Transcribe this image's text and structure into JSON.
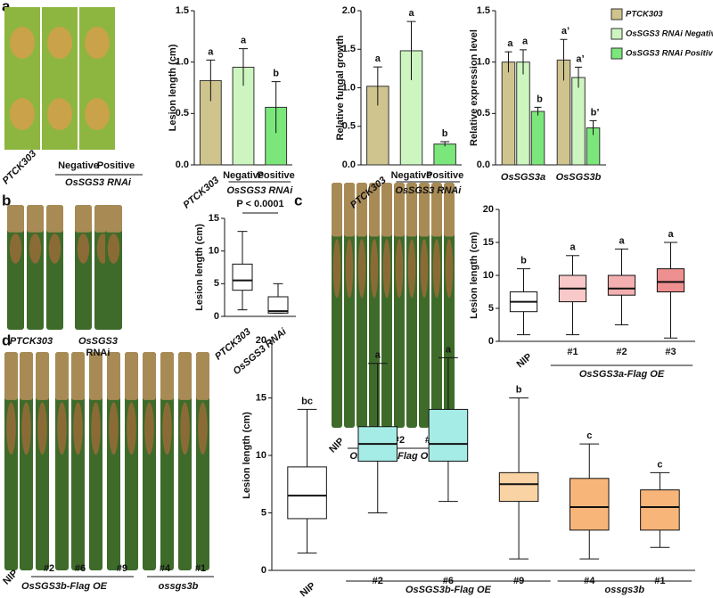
{
  "panel_letters": [
    "a",
    "b",
    "c",
    "d"
  ],
  "photos": [
    {
      "labels": [
        "PTCK303",
        "Negative",
        "Positive"
      ],
      "group_label": "OsSGS3 RNAi"
    },
    {
      "labels": [
        "PTCK303",
        "OsSGS3",
        "RNAi"
      ]
    },
    {
      "labels": [
        "NIP",
        "#1",
        "#2",
        "#3"
      ],
      "group_label": "OsSGS3a-Flag OE"
    },
    {
      "labels": [
        "NIP",
        "#2",
        "#6",
        "#9",
        "#4",
        "#1"
      ],
      "group_labels": [
        "OsSGS3b-Flag OE",
        "ossgs3b"
      ]
    }
  ],
  "chart_data": [
    {
      "type": "bar",
      "y_label": "Lesion length (cm)",
      "categories": [
        "PTCK303",
        "Negative",
        "Positive"
      ],
      "group_labels": [
        "OsSGS3 RNAi"
      ],
      "values": [
        0.82,
        0.95,
        0.56
      ],
      "errors": [
        0.2,
        0.18,
        0.25
      ],
      "letters": [
        "a",
        "a",
        "b"
      ],
      "colors": [
        "#cfc48e",
        "#cdf5c0",
        "#7be77b"
      ],
      "ylim": [
        0,
        1.5
      ],
      "yticks": [
        {
          "value": 0,
          "label": "0.0"
        },
        {
          "value": 0.5,
          "label": "0.5"
        },
        {
          "value": 1,
          "label": "1.0"
        },
        {
          "value": 1.5,
          "label": "1.5"
        }
      ]
    },
    {
      "type": "bar",
      "y_label": "Relative fungal growth",
      "categories": [
        "PTCK303",
        "Negative",
        "Positive"
      ],
      "group_labels": [
        "OsSGS3 RNAi"
      ],
      "values": [
        1.02,
        1.48,
        0.27
      ],
      "errors": [
        0.25,
        0.38,
        0.03
      ],
      "letters": [
        "a",
        "a",
        "b"
      ],
      "colors": [
        "#cfc48e",
        "#cdf5c0",
        "#7be77b"
      ],
      "ylim": [
        0,
        2
      ],
      "yticks": [
        {
          "value": 0,
          "label": "0.0"
        },
        {
          "value": 0.5,
          "label": "0.5"
        },
        {
          "value": 1,
          "label": "1.0"
        },
        {
          "value": 1.5,
          "label": "1.5"
        },
        {
          "value": 2,
          "label": "2.0"
        }
      ]
    },
    {
      "type": "grouped_bar",
      "y_label": "Relative expression level",
      "categories": [
        "OsSGS3a",
        "OsSGS3b"
      ],
      "series": [
        {
          "name": "PTCK303",
          "color": "#cfc48e",
          "values": [
            1.0,
            1.02
          ],
          "errors": [
            0.1,
            0.2
          ],
          "letters": [
            "a",
            "a’"
          ]
        },
        {
          "name": "OsSGS3 RNAi Negative",
          "color": "#cdf5c0",
          "values": [
            1.0,
            0.85
          ],
          "errors": [
            0.12,
            0.1
          ],
          "letters": [
            "a",
            "a’"
          ]
        },
        {
          "name": "OsSGS3 RNAi Positive",
          "color": "#7be77b",
          "values": [
            0.52,
            0.36
          ],
          "errors": [
            0.04,
            0.07
          ],
          "letters": [
            "b",
            "b’"
          ]
        }
      ],
      "ylim": [
        0,
        1.5
      ],
      "yticks": [
        {
          "value": 0,
          "label": "0.0"
        },
        {
          "value": 0.5,
          "label": "0.5"
        },
        {
          "value": 1,
          "label": "1.0"
        },
        {
          "value": 1.5,
          "label": "1.5"
        }
      ]
    },
    {
      "type": "box",
      "y_label": "Lesion length (cm)",
      "categories": [
        "PTCK303",
        "OsSGS3 RNAi"
      ],
      "stats": [
        [
          1,
          4,
          5.5,
          8,
          13
        ],
        [
          0.5,
          0.5,
          0.8,
          3,
          5
        ]
      ],
      "colors": [
        "#ffffff",
        "#ffffff"
      ],
      "annotation": "P < 0.0001",
      "ylim": [
        0,
        15
      ],
      "yticks": [
        0,
        5,
        10,
        15
      ]
    },
    {
      "type": "box",
      "y_label": "Lesion length (cm)",
      "categories": [
        "NIP",
        "#1",
        "#2",
        "#3"
      ],
      "group_labels": [
        "OsSGS3a-Flag OE"
      ],
      "stats": [
        [
          1,
          4.5,
          6,
          7.5,
          11
        ],
        [
          1,
          6,
          8,
          10,
          13
        ],
        [
          2.5,
          7,
          8,
          10,
          14
        ],
        [
          0.5,
          7.5,
          9,
          11,
          15
        ]
      ],
      "letters": [
        "b",
        "a",
        "a",
        "a"
      ],
      "colors": [
        "#ffffff",
        "#f9c8c8",
        "#f4b0b0",
        "#ee9090"
      ],
      "ylim": [
        0,
        20
      ],
      "yticks": [
        0,
        5,
        10,
        15,
        20
      ]
    },
    {
      "type": "box",
      "y_label": "Lesion length (cm)",
      "categories": [
        "NIP",
        "#2",
        "#6",
        "#9",
        "#4",
        "#1"
      ],
      "group_labels": [
        "OsSGS3b-Flag OE",
        "ossgs3b"
      ],
      "stats": [
        [
          1.5,
          4.5,
          6.5,
          9,
          14
        ],
        [
          5,
          9.5,
          11,
          12.5,
          18
        ],
        [
          6,
          9.5,
          11,
          14,
          18.5
        ],
        [
          1,
          6,
          7.5,
          8.5,
          15
        ],
        [
          1,
          3.5,
          5.5,
          8,
          11
        ],
        [
          2,
          3.5,
          5.5,
          7,
          8.5
        ]
      ],
      "letters": [
        "bc",
        "a",
        "a",
        "b",
        "c",
        "c"
      ],
      "colors": [
        "#ffffff",
        "#a6ece6",
        "#a6ece6",
        "#f9d3a4",
        "#f7b57a",
        "#f7b57a"
      ],
      "ylim": [
        0,
        20
      ],
      "yticks": [
        0,
        5,
        10,
        15,
        20
      ]
    }
  ]
}
